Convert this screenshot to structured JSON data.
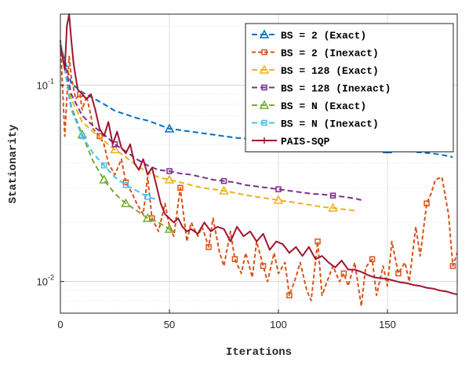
{
  "chart_data": {
    "type": "line",
    "title": "",
    "xlabel": "Iterations",
    "ylabel": "Stationarity",
    "xlim": [
      0,
      182
    ],
    "ylim": [
      0.0069,
      0.23
    ],
    "yscale": "log",
    "grid": true,
    "legend_position": "top-right",
    "x_ticks": [
      0,
      50,
      100,
      150
    ],
    "x_tick_labels": [
      "0",
      "50",
      "100",
      "150"
    ],
    "y_ticks": [
      0.1,
      0.01
    ],
    "y_tick_labels": [
      {
        "base": "10",
        "exp": "-1"
      },
      {
        "base": "10",
        "exp": "-2"
      }
    ],
    "series": [
      {
        "name": "BS = 2 (Exact)",
        "color": "#0072BD",
        "dash": "7,4",
        "marker": "triangle",
        "marker_every": 10,
        "x": [
          0,
          5,
          10,
          15,
          20,
          25,
          30,
          35,
          40,
          45,
          50,
          55,
          60,
          65,
          70,
          75,
          80,
          85,
          90,
          95,
          100,
          105,
          110,
          115,
          120,
          125,
          130,
          135,
          140,
          145,
          150,
          155,
          160,
          165,
          170,
          175,
          180
        ],
        "y": [
          0.16,
          0.102,
          0.092,
          0.086,
          0.08,
          0.074,
          0.071,
          0.068,
          0.066,
          0.063,
          0.06,
          0.059,
          0.058,
          0.057,
          0.056,
          0.055,
          0.054,
          0.0535,
          0.053,
          0.0525,
          0.052,
          0.0515,
          0.051,
          0.0505,
          0.05,
          0.0495,
          0.049,
          0.0485,
          0.048,
          0.0475,
          0.047,
          0.0465,
          0.046,
          0.0455,
          0.045,
          0.0442,
          0.043
        ]
      },
      {
        "name": "BS = 2 (Inexact)",
        "color": "#D95319",
        "dash": "5,3",
        "marker": "square",
        "marker_every": 5,
        "x": [
          0,
          2,
          4,
          5,
          7,
          9,
          10,
          12,
          14,
          15,
          18,
          20,
          22,
          25,
          28,
          30,
          33,
          35,
          38,
          40,
          42,
          45,
          48,
          50,
          52,
          55,
          58,
          60,
          63,
          65,
          68,
          70,
          73,
          75,
          78,
          80,
          83,
          85,
          88,
          90,
          93,
          95,
          98,
          100,
          103,
          105,
          108,
          110,
          113,
          115,
          118,
          120,
          123,
          125,
          128,
          130,
          132,
          135,
          138,
          140,
          143,
          145,
          148,
          150,
          152,
          155,
          158,
          160,
          163,
          165,
          168,
          170,
          172,
          175,
          178,
          180,
          182
        ],
        "y": [
          0.17,
          0.055,
          0.14,
          0.11,
          0.085,
          0.09,
          0.075,
          0.088,
          0.07,
          0.06,
          0.055,
          0.05,
          0.04,
          0.035,
          0.042,
          0.032,
          0.028,
          0.025,
          0.022,
          0.034,
          0.021,
          0.018,
          0.025,
          0.019,
          0.017,
          0.03,
          0.016,
          0.02,
          0.017,
          0.019,
          0.015,
          0.021,
          0.014,
          0.012,
          0.018,
          0.013,
          0.011,
          0.014,
          0.0105,
          0.016,
          0.012,
          0.01,
          0.014,
          0.011,
          0.0125,
          0.0085,
          0.0105,
          0.0125,
          0.009,
          0.008,
          0.016,
          0.0085,
          0.0105,
          0.012,
          0.01,
          0.011,
          0.0095,
          0.0125,
          0.0075,
          0.0118,
          0.013,
          0.0085,
          0.012,
          0.0095,
          0.016,
          0.011,
          0.0125,
          0.01,
          0.019,
          0.0135,
          0.025,
          0.028,
          0.033,
          0.034,
          0.022,
          0.012,
          0.014
        ]
      },
      {
        "name": "BS = 128 (Exact)",
        "color": "#EDB120",
        "dash": "7,4",
        "marker": "triangle",
        "marker_every": 5,
        "x": [
          0,
          5,
          10,
          15,
          20,
          25,
          30,
          35,
          40,
          45,
          50,
          55,
          60,
          65,
          70,
          75,
          80,
          85,
          90,
          95,
          100,
          105,
          110,
          115,
          120,
          125,
          130,
          135
        ],
        "y": [
          0.165,
          0.085,
          0.065,
          0.058,
          0.052,
          0.047,
          0.043,
          0.039,
          0.036,
          0.034,
          0.033,
          0.032,
          0.031,
          0.03,
          0.0295,
          0.029,
          0.0283,
          0.0276,
          0.027,
          0.0265,
          0.026,
          0.0255,
          0.025,
          0.0245,
          0.024,
          0.0237,
          0.0233,
          0.023
        ]
      },
      {
        "name": "BS = 128 (Inexact)",
        "color": "#7E2F8E",
        "dash": "7,4",
        "marker": "square",
        "marker_every": 5,
        "x": [
          0,
          5,
          10,
          15,
          20,
          25,
          30,
          35,
          40,
          45,
          50,
          55,
          60,
          65,
          70,
          75,
          80,
          85,
          90,
          95,
          100,
          105,
          110,
          115,
          120,
          125,
          130,
          135,
          138
        ],
        "y": [
          0.165,
          0.09,
          0.07,
          0.062,
          0.056,
          0.05,
          0.046,
          0.042,
          0.039,
          0.037,
          0.0365,
          0.0355,
          0.035,
          0.034,
          0.033,
          0.0325,
          0.032,
          0.031,
          0.0305,
          0.03,
          0.0295,
          0.029,
          0.0285,
          0.028,
          0.0278,
          0.0274,
          0.027,
          0.0265,
          0.026
        ]
      },
      {
        "name": "BS = N (Exact)",
        "color": "#77AC30",
        "dash": "7,4",
        "marker": "triangle",
        "marker_every": 2,
        "x": [
          0,
          5,
          10,
          15,
          20,
          25,
          30,
          35,
          40,
          45,
          50,
          52
        ],
        "y": [
          0.165,
          0.078,
          0.056,
          0.041,
          0.033,
          0.028,
          0.025,
          0.023,
          0.021,
          0.02,
          0.0185,
          0.018
        ]
      },
      {
        "name": "BS = N (Inexact)",
        "color": "#4DBEEE",
        "dash": "7,4",
        "marker": "square",
        "marker_every": 2,
        "x": [
          0,
          5,
          10,
          15,
          20,
          25,
          30,
          35,
          40,
          45
        ],
        "y": [
          0.165,
          0.075,
          0.055,
          0.045,
          0.039,
          0.034,
          0.031,
          0.029,
          0.027,
          0.026
        ]
      },
      {
        "name": "PAIS-SQP",
        "color": "#A2142F",
        "dash": "",
        "marker": "plus",
        "marker_every": 1000,
        "x": [
          0,
          2,
          3,
          4,
          5,
          6,
          7,
          8,
          10,
          12,
          14,
          16,
          18,
          20,
          22,
          24,
          26,
          28,
          30,
          32,
          34,
          36,
          38,
          40,
          42,
          44,
          46,
          48,
          50,
          52,
          54,
          56,
          58,
          60,
          63,
          66,
          69,
          72,
          75,
          78,
          81,
          84,
          87,
          90,
          93,
          96,
          99,
          102,
          105,
          108,
          111,
          114,
          117,
          120,
          123,
          126,
          129,
          132,
          135,
          138,
          141,
          144,
          147,
          150,
          153,
          156,
          159,
          162,
          165,
          168,
          171,
          174,
          177,
          180,
          182
        ],
        "y": [
          0.16,
          0.12,
          0.2,
          0.23,
          0.17,
          0.13,
          0.11,
          0.095,
          0.09,
          0.085,
          0.09,
          0.075,
          0.06,
          0.055,
          0.065,
          0.05,
          0.058,
          0.048,
          0.045,
          0.05,
          0.04,
          0.037,
          0.042,
          0.035,
          0.038,
          0.031,
          0.025,
          0.022,
          0.021,
          0.02,
          0.021,
          0.019,
          0.018,
          0.0185,
          0.0175,
          0.02,
          0.018,
          0.019,
          0.0185,
          0.016,
          0.019,
          0.017,
          0.018,
          0.016,
          0.0175,
          0.0145,
          0.016,
          0.0155,
          0.014,
          0.015,
          0.0135,
          0.015,
          0.013,
          0.0135,
          0.0125,
          0.0118,
          0.0128,
          0.0115,
          0.0115,
          0.0112,
          0.0108,
          0.0105,
          0.0104,
          0.0103,
          0.0101,
          0.0099,
          0.0098,
          0.0096,
          0.0095,
          0.0093,
          0.0092,
          0.009,
          0.0089,
          0.0087,
          0.0086
        ]
      }
    ]
  }
}
